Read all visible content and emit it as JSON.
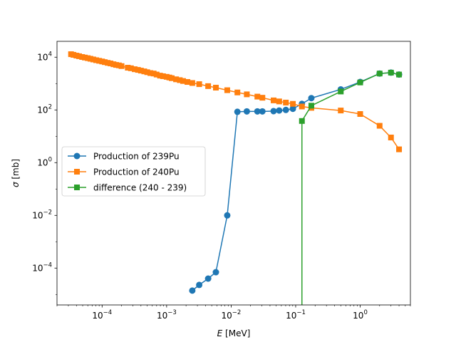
{
  "chart_data": {
    "type": "line",
    "x_scale": "log",
    "y_scale": "log",
    "xlim": [
      2e-05,
      6.0
    ],
    "ylim": [
      4e-06,
      40000.0
    ],
    "x_ticks": [
      {
        "value": 0.0001,
        "base": "10",
        "exp": "−4"
      },
      {
        "value": 0.001,
        "base": "10",
        "exp": "−3"
      },
      {
        "value": 0.01,
        "base": "10",
        "exp": "−2"
      },
      {
        "value": 0.1,
        "base": "10",
        "exp": "−1"
      },
      {
        "value": 1,
        "base": "10",
        "exp": "0"
      }
    ],
    "y_ticks": [
      {
        "value": 0.0001,
        "base": "10",
        "exp": "−4"
      },
      {
        "value": 0.01,
        "base": "10",
        "exp": "−2"
      },
      {
        "value": 1,
        "base": "10",
        "exp": "0"
      },
      {
        "value": 100,
        "base": "10",
        "exp": "2"
      },
      {
        "value": 10000,
        "base": "10",
        "exp": "4"
      }
    ],
    "xlabel": {
      "italic": "E",
      "rest": " [MeV]"
    },
    "ylabel": {
      "italic": "σ",
      "rest": " [mb]"
    },
    "grid": false,
    "legend_position": "center-left",
    "series": [
      {
        "name": "Production of 239Pu",
        "color": "#1f77b4",
        "marker": "circle",
        "x": [
          0.0025,
          0.0032,
          0.0044,
          0.0058,
          0.0087,
          0.0125,
          0.0175,
          0.0255,
          0.0305,
          0.0455,
          0.0555,
          0.0705,
          0.0905,
          0.125,
          0.175,
          0.5,
          1.0,
          2.0,
          3.0,
          4.0
        ],
        "y": [
          1.4e-05,
          2.3e-05,
          4e-05,
          7e-05,
          0.01,
          85,
          88,
          88,
          88,
          90,
          95,
          100,
          110,
          170,
          280,
          600,
          1150,
          2400,
          2600,
          2200
        ]
      },
      {
        "name": "Production of 240Pu",
        "color": "#ff7f0e",
        "marker": "square",
        "x": [
          3.3e-05,
          3.6e-05,
          4e-05,
          4.4e-05,
          4.9e-05,
          5.4e-05,
          6e-05,
          6.6e-05,
          7.3e-05,
          8.1e-05,
          9e-05,
          0.0001,
          0.00011,
          0.000122,
          0.000135,
          0.00015,
          0.000165,
          0.000182,
          0.0002,
          0.00025,
          0.00028,
          0.00032,
          0.00036,
          0.0004,
          0.00045,
          0.0005,
          0.00056,
          0.00063,
          0.0007,
          0.00079,
          0.00088,
          0.001,
          0.0011,
          0.0012,
          0.0014,
          0.0016,
          0.0018,
          0.0021,
          0.0025,
          0.0032,
          0.0044,
          0.0058,
          0.0087,
          0.0125,
          0.0175,
          0.0255,
          0.0305,
          0.0455,
          0.0555,
          0.0705,
          0.0905,
          0.125,
          0.175,
          0.5,
          1.0,
          2.0,
          3.0,
          4.0
        ],
        "y": [
          13000,
          12300,
          11500,
          10900,
          10200,
          9700,
          9200,
          8700,
          8200,
          7700,
          7300,
          6900,
          6500,
          6100,
          5800,
          5400,
          5100,
          4900,
          4600,
          4000,
          3800,
          3500,
          3300,
          3100,
          2900,
          2700,
          2500,
          2400,
          2200,
          2000,
          1900,
          1800,
          1700,
          1600,
          1450,
          1350,
          1250,
          1150,
          1050,
          950,
          800,
          700,
          560,
          460,
          390,
          320,
          290,
          230,
          210,
          190,
          170,
          135,
          120,
          95,
          70,
          25,
          9,
          3.2
        ]
      },
      {
        "name": "difference (240 - 239)",
        "color": "#2ca02c",
        "marker": "square",
        "x": [
          0.125,
          0.175,
          0.5,
          1.0,
          2.0,
          3.0,
          4.0
        ],
        "y": [
          38,
          145,
          500,
          1100,
          2400,
          2600,
          2200
        ],
        "drop_to_axis_at": 0.125
      }
    ]
  }
}
